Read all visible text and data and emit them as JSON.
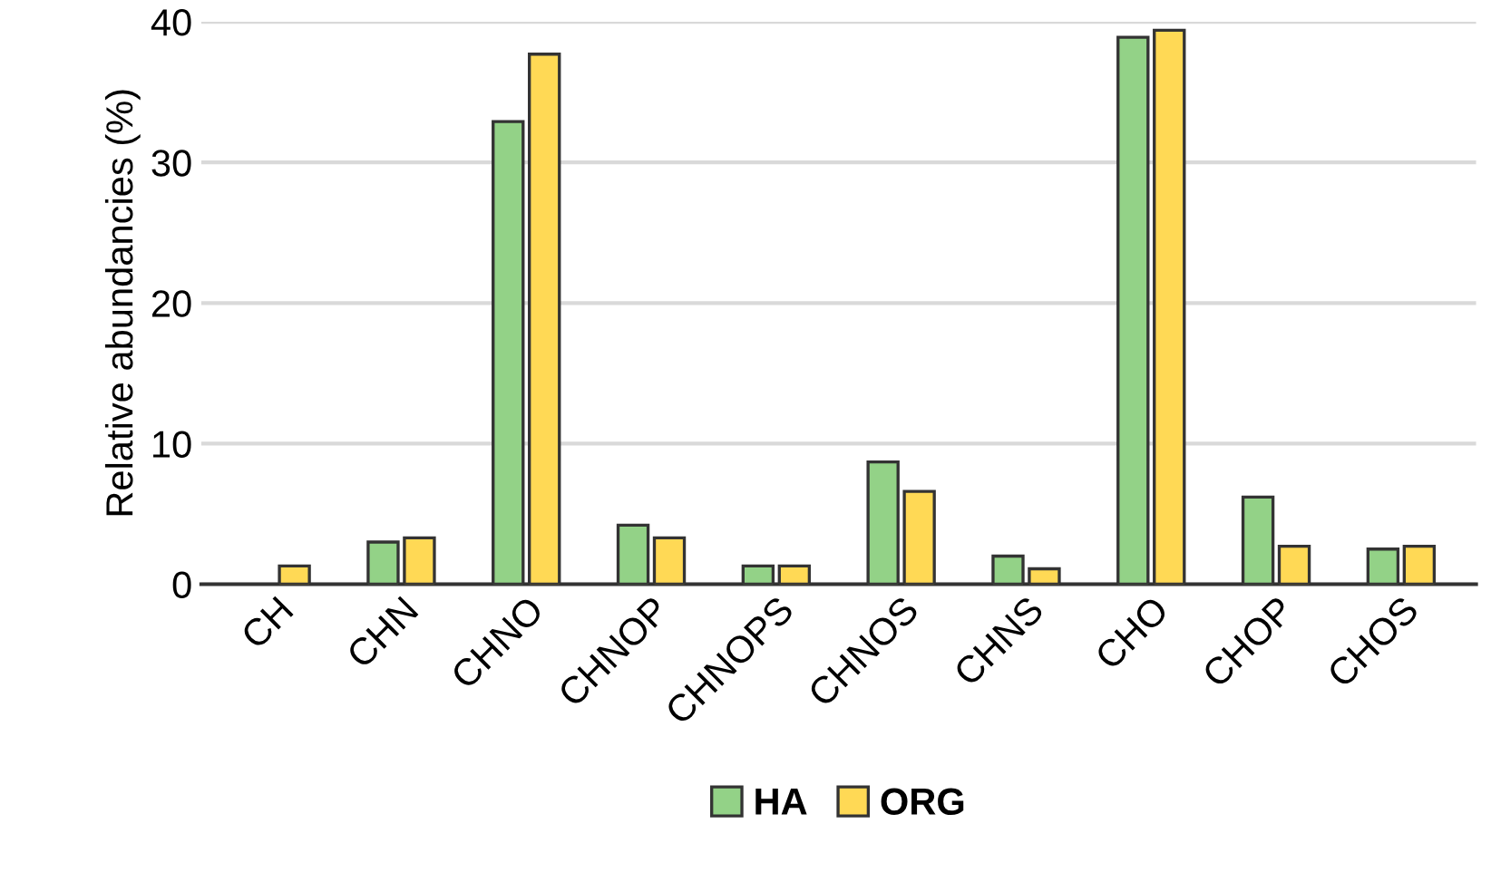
{
  "chart_data": {
    "type": "bar",
    "ylabel": "Relative abundancies (%)",
    "categories": [
      "CH",
      "CHN",
      "CHNO",
      "CHNOP",
      "CHNOPS",
      "CHNOS",
      "CHNS",
      "CHO",
      "CHOP",
      "CHOS"
    ],
    "series": [
      {
        "name": "HA",
        "color": "#93d287",
        "values": [
          null,
          3.0,
          32.9,
          4.2,
          1.3,
          8.7,
          2.0,
          38.9,
          6.2,
          2.5
        ]
      },
      {
        "name": "ORG",
        "color": "#ffd955",
        "values": [
          1.3,
          3.3,
          37.7,
          3.3,
          1.3,
          6.6,
          1.1,
          39.4,
          2.7,
          2.7
        ]
      }
    ],
    "ylim": [
      0,
      40
    ],
    "yticks": [
      0,
      10,
      20,
      30,
      40
    ],
    "grid": "y",
    "legend": "bottom"
  }
}
